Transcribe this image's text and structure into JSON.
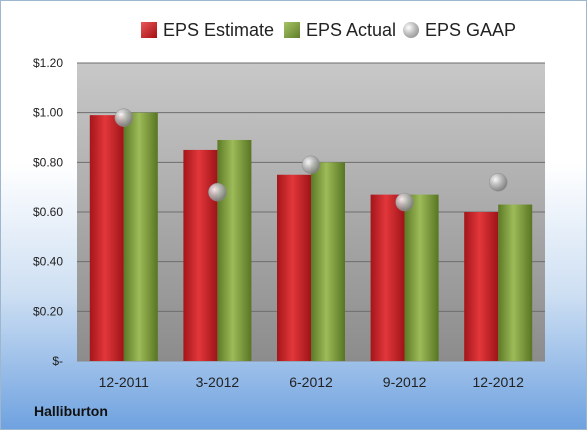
{
  "chart_data": {
    "type": "bar",
    "categories": [
      "12-2011",
      "3-2012",
      "6-2012",
      "9-2012",
      "12-2012"
    ],
    "series": [
      {
        "name": "EPS Estimate",
        "kind": "bar",
        "color": "#cc1e22",
        "values": [
          0.99,
          0.85,
          0.75,
          0.67,
          0.6
        ]
      },
      {
        "name": "EPS Actual",
        "kind": "bar",
        "color": "#7e9d3c",
        "values": [
          1.0,
          0.89,
          0.8,
          0.67,
          0.63
        ]
      },
      {
        "name": "EPS GAAP",
        "kind": "marker",
        "color": "#a8a8a8",
        "values": [
          0.98,
          0.68,
          0.79,
          0.64,
          0.72
        ]
      }
    ],
    "ylim": [
      0,
      1.2
    ],
    "yticks": [
      {
        "value": 0,
        "label": "$-"
      },
      {
        "value": 0.2,
        "label": "$0.20"
      },
      {
        "value": 0.4,
        "label": "$0.40"
      },
      {
        "value": 0.6,
        "label": "$0.60"
      },
      {
        "value": 0.8,
        "label": "$0.80"
      },
      {
        "value": 1.0,
        "label": "$1.00"
      },
      {
        "value": 1.2,
        "label": "$1.20"
      }
    ],
    "grid": true,
    "legend_position": "top",
    "plot_background": [
      "#c4c4c4",
      "#8f8f8f"
    ]
  },
  "company": "Halliburton"
}
